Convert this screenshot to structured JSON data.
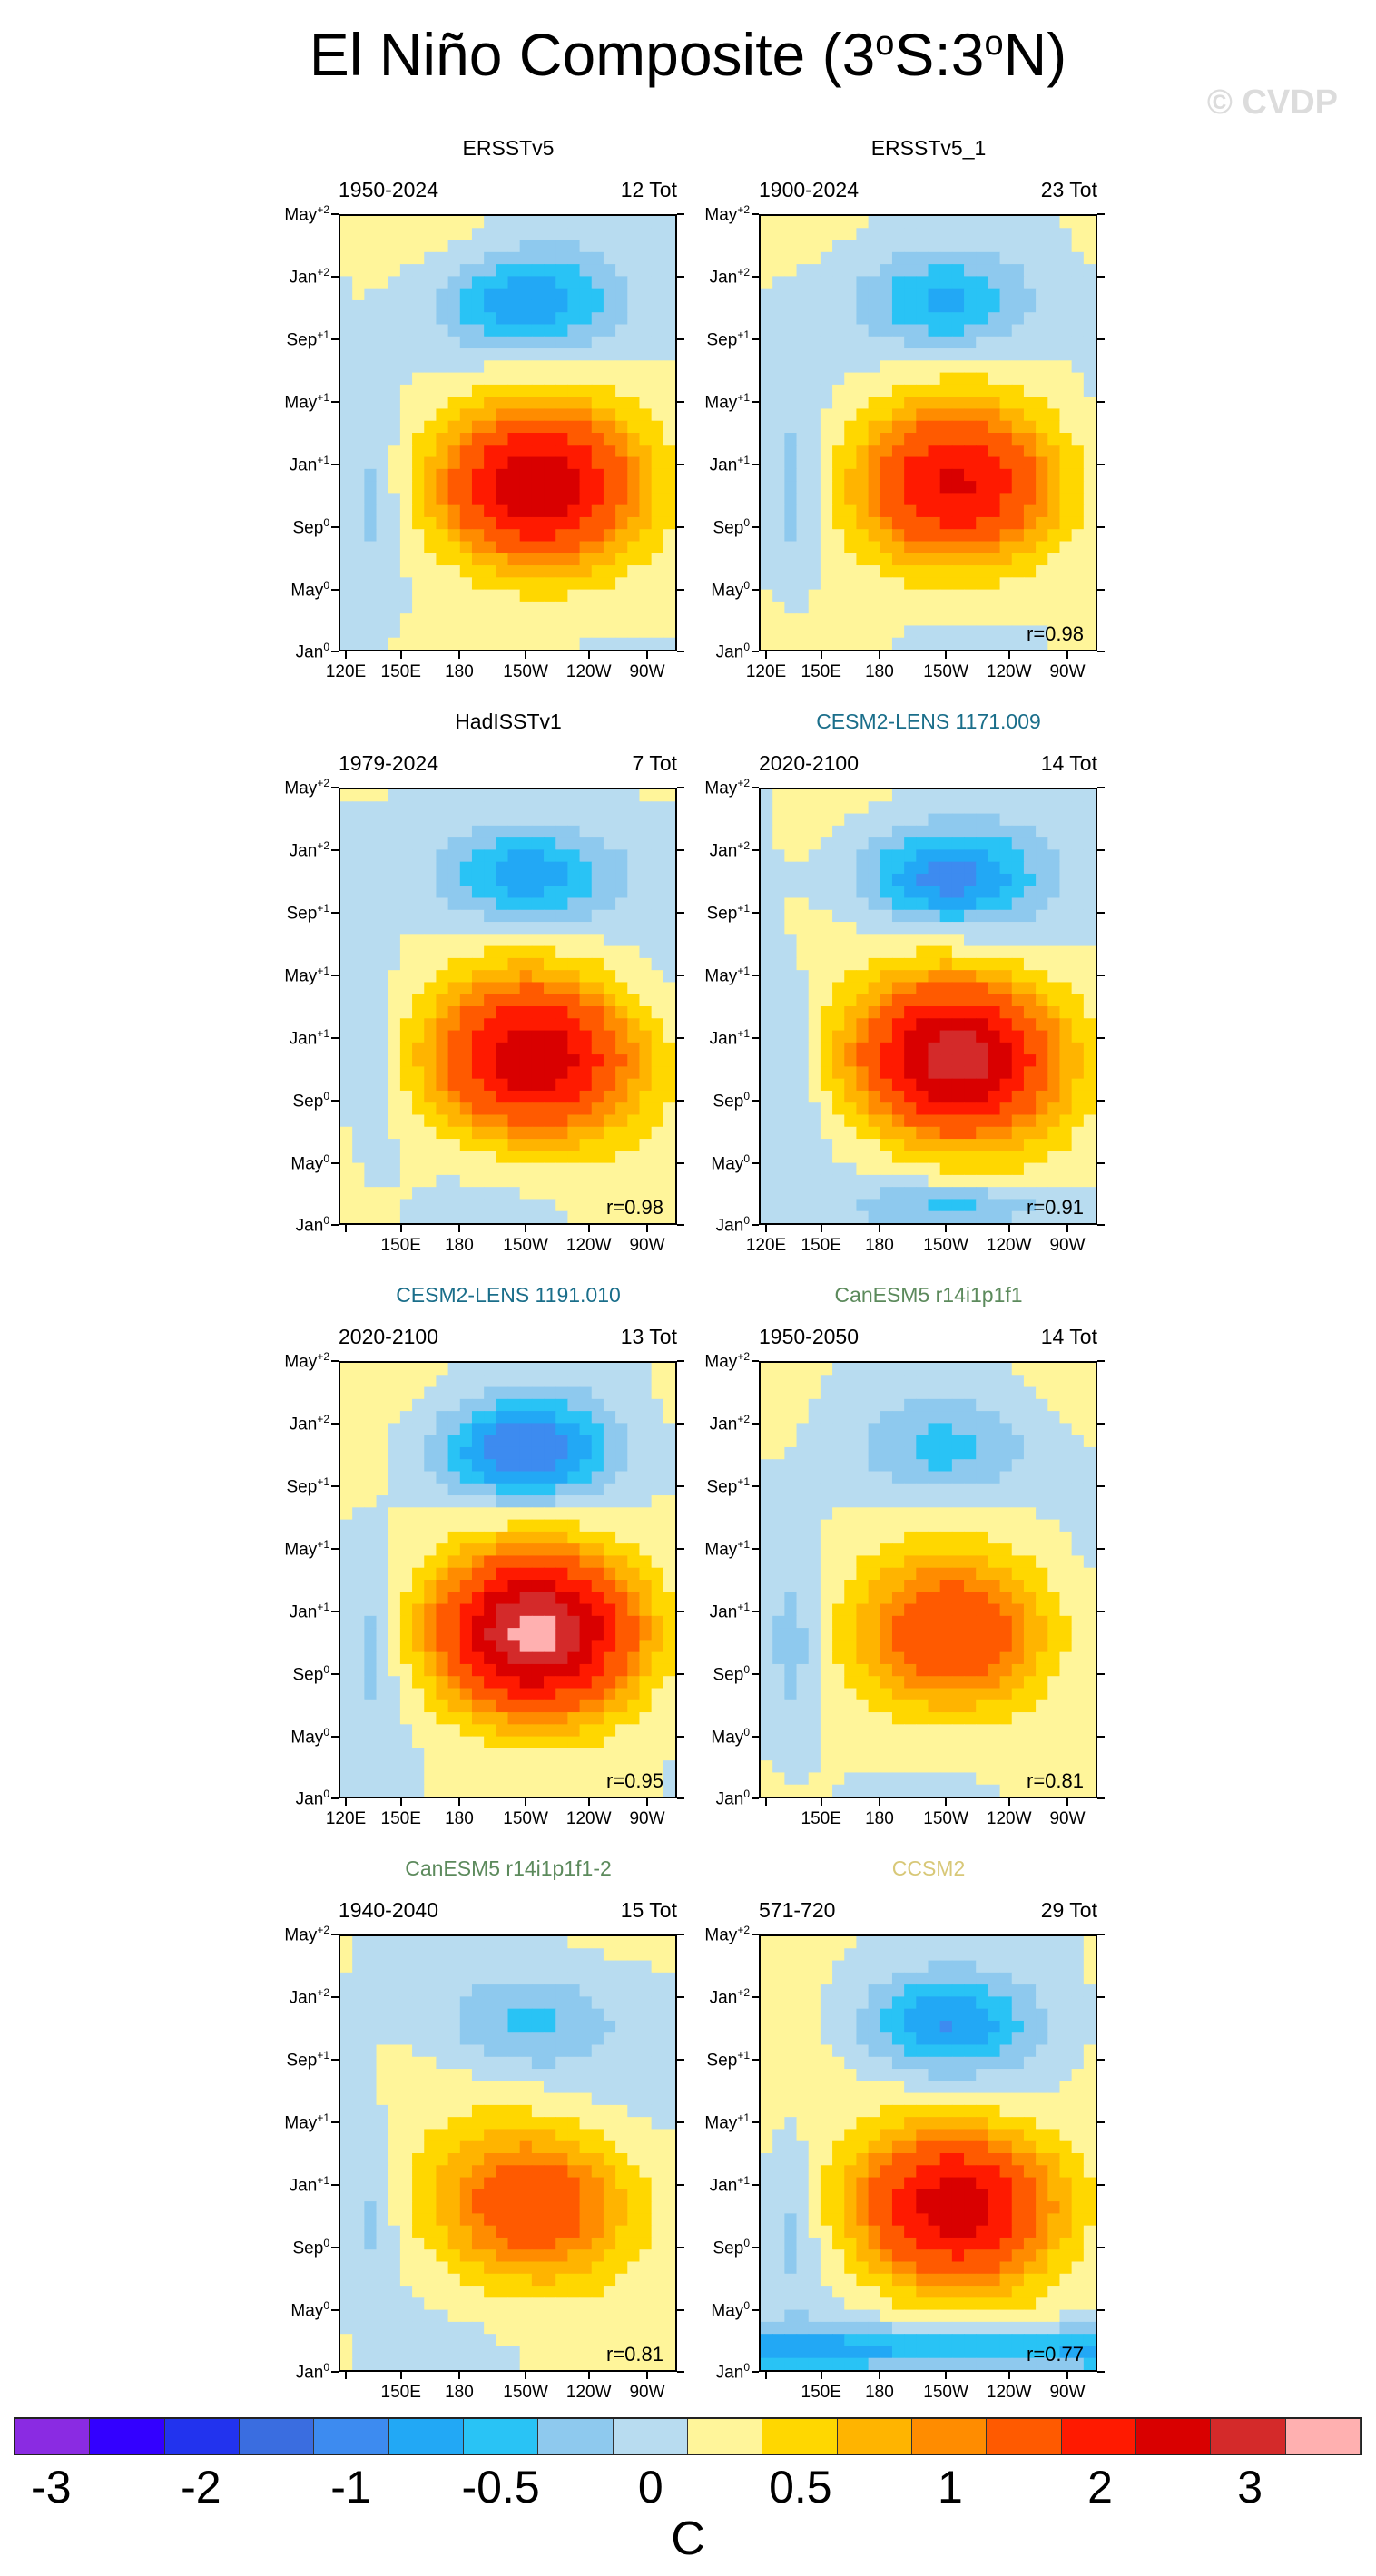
{
  "title": {
    "text": "El Niño Composite (3",
    "deg1": "o",
    "mid": "S:3",
    "deg2": "o",
    "end": "N)"
  },
  "watermark": "© CVDP",
  "chart_data": [
    {
      "type": "heatmap",
      "title": "ERSSTv5",
      "title_color": "#000000",
      "years": "1950-2024",
      "tot": "12 Tot",
      "r": "",
      "xlabels": [
        "120E",
        "150E",
        "180",
        "150W",
        "120W",
        "90W"
      ],
      "ylabels": [
        "May",
        "Jan",
        "Sep",
        "May",
        "Jan",
        "Sep",
        "May",
        "Jan"
      ],
      "ysup": [
        "+2",
        "+2",
        "+1",
        "+1",
        "+1",
        "0",
        "0",
        "0"
      ],
      "peak": 2.4
    },
    {
      "type": "heatmap",
      "title": "ERSSTv5_1",
      "title_color": "#000000",
      "years": "1900-2024",
      "tot": "23 Tot",
      "r": "r=0.98",
      "xlabels": [
        "120E",
        "150E",
        "180",
        "150W",
        "120W",
        "90W"
      ],
      "ylabels": [
        "May",
        "Jan",
        "Sep",
        "May",
        "Jan",
        "Sep",
        "May",
        "Jan"
      ],
      "ysup": [
        "+2",
        "+2",
        "+1",
        "+1",
        "+1",
        "0",
        "0",
        "0"
      ],
      "peak": 2.0
    },
    {
      "type": "heatmap",
      "title": "HadISSTv1",
      "title_color": "#000000",
      "years": "1979-2024",
      "tot": "7 Tot",
      "r": "r=0.98",
      "xlabels": [
        "",
        "150E",
        "180",
        "150W",
        "120W",
        "90W"
      ],
      "ylabels": [
        "May",
        "Jan",
        "Sep",
        "May",
        "Jan",
        "Sep",
        "May",
        "Jan"
      ],
      "ysup": [
        "+2",
        "+2",
        "+1",
        "+1",
        "+1",
        "0",
        "0",
        "0"
      ],
      "peak": 2.4
    },
    {
      "type": "heatmap",
      "title": "CESM2-LENS 1171.009",
      "title_color": "#1a6e8a",
      "years": "2020-2100",
      "tot": "14 Tot",
      "r": "r=0.91",
      "xlabels": [
        "120E",
        "150E",
        "180",
        "150W",
        "120W",
        "90W"
      ],
      "ylabels": [
        "May",
        "Jan",
        "Sep",
        "May",
        "Jan",
        "Sep",
        "May",
        "Jan"
      ],
      "ysup": [
        "+2",
        "+2",
        "+1",
        "+1",
        "+1",
        "0",
        "0",
        "0"
      ],
      "peak": 2.8
    },
    {
      "type": "heatmap",
      "title": "CESM2-LENS 1191.010",
      "title_color": "#1a6e8a",
      "years": "2020-2100",
      "tot": "13 Tot",
      "r": "r=0.95",
      "xlabels": [
        "120E",
        "150E",
        "180",
        "150W",
        "120W",
        "90W"
      ],
      "ylabels": [
        "May",
        "Jan",
        "Sep",
        "May",
        "Jan",
        "Sep",
        "May",
        "Jan"
      ],
      "ysup": [
        "+2",
        "+2",
        "+1",
        "+1",
        "+1",
        "0",
        "0",
        "0"
      ],
      "peak": 3.1
    },
    {
      "type": "heatmap",
      "title": "CanESM5 r14i1p1f1",
      "title_color": "#5c8a5c",
      "years": "1950-2050",
      "tot": "14 Tot",
      "r": "r=0.81",
      "xlabels": [
        "",
        "150E",
        "180",
        "150W",
        "120W",
        "90W"
      ],
      "ylabels": [
        "May",
        "Jan",
        "Sep",
        "May",
        "Jan",
        "Sep",
        "May",
        "Jan"
      ],
      "ysup": [
        "+2",
        "+2",
        "+1",
        "+1",
        "+1",
        "0",
        "0",
        "0"
      ],
      "peak": 1.4
    },
    {
      "type": "heatmap",
      "title": "CanESM5 r14i1p1f1-2",
      "title_color": "#5c8a5c",
      "years": "1940-2040",
      "tot": "15 Tot",
      "r": "r=0.81",
      "xlabels": [
        "",
        "150E",
        "180",
        "150W",
        "120W",
        "90W"
      ],
      "ylabels": [
        "May",
        "Jan",
        "Sep",
        "May",
        "Jan",
        "Sep",
        "May",
        "Jan"
      ],
      "ysup": [
        "+2",
        "+2",
        "+1",
        "+1",
        "+1",
        "0",
        "0",
        "0"
      ],
      "peak": 1.4
    },
    {
      "type": "heatmap",
      "title": "CCSM2",
      "title_color": "#d8c878",
      "years": "571-720",
      "tot": "29 Tot",
      "r": "r=0.77",
      "xlabels": [
        "",
        "150E",
        "180",
        "150W",
        "120W",
        "90W"
      ],
      "ylabels": [
        "May",
        "Jan",
        "Sep",
        "May",
        "Jan",
        "Sep",
        "May",
        "Jan"
      ],
      "ysup": [
        "+2",
        "+2",
        "+1",
        "+1",
        "+1",
        "0",
        "0",
        "0"
      ],
      "peak": 2.3
    }
  ],
  "colorbar": {
    "colors": [
      "#8a2be2",
      "#3300ff",
      "#2233ee",
      "#3a6de0",
      "#3d8bf0",
      "#22a8f5",
      "#29c3f5",
      "#8ec9ee",
      "#b8dcf0",
      "#fff59a",
      "#ffd700",
      "#ffb400",
      "#ff8c00",
      "#ff5a00",
      "#ff1a00",
      "#d90000",
      "#d42a2a",
      "#ffb0b0"
    ],
    "labels": [
      "-3",
      "-2",
      "-1",
      "-0.5",
      "0",
      "0.5",
      "1",
      "2",
      "3"
    ],
    "units": "C"
  }
}
